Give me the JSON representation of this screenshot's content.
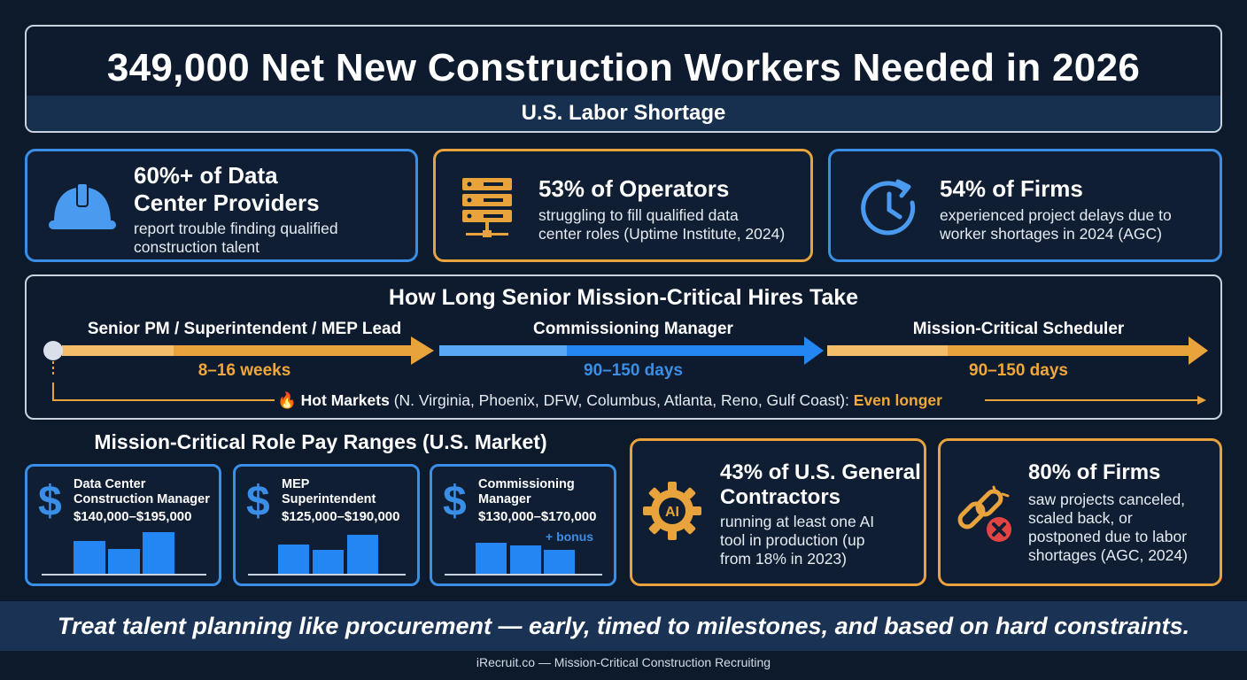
{
  "header": {
    "title": "349,000 Net New Construction Workers Needed in 2026",
    "subtitle": "U.S. Labor Shortage"
  },
  "stats_top": [
    {
      "headline_line1": "60%+ of Data",
      "headline_line2": "Center Providers",
      "detail_line1": "report trouble finding qualified",
      "detail_line2": "construction talent",
      "icon": "hard-hat-icon"
    },
    {
      "headline": "53% of Operators",
      "detail_line1": "struggling to fill qualified data",
      "detail_line2": "center roles (Uptime Institute, 2024)",
      "icon": "server-rack-icon"
    },
    {
      "headline": "54% of Firms",
      "detail_line1": "experienced project delays due to",
      "detail_line2": "worker shortages in 2024 (AGC)",
      "icon": "clock-icon"
    }
  ],
  "timeline": {
    "title": "How Long Senior Mission-Critical Hires Take",
    "stages": [
      {
        "label": "Senior PM / Superintendent / MEP Lead",
        "duration": "8–16 weeks"
      },
      {
        "label": "Commissioning Manager",
        "duration": "90–150 days"
      },
      {
        "label": "Mission-Critical Scheduler",
        "duration": "90–150 days"
      }
    ],
    "hot_markets": {
      "emoji": "🔥",
      "label": "Hot Markets",
      "list": " (N. Virginia, Phoenix, DFW, Columbus, Atlanta, Reno, Gulf Coast): ",
      "emphasis": "Even longer"
    }
  },
  "pay": {
    "title": "Mission-Critical Role Pay Ranges (U.S. Market)",
    "cards": [
      {
        "role_line1": "Data Center",
        "role_line2": "Construction Manager",
        "range": "$140,000–$195,000",
        "bonus": ""
      },
      {
        "role_line1": "MEP",
        "role_line2": "Superintendent",
        "range": "$125,000–$190,000",
        "bonus": ""
      },
      {
        "role_line1": "Commissioning",
        "role_line2": "Manager",
        "range": "$130,000–$170,000",
        "bonus": "+ bonus"
      }
    ]
  },
  "stats_bottom": [
    {
      "headline_line1": "43% of U.S. General",
      "headline_line2": "Contractors",
      "detail_line1": "running at least one AI",
      "detail_line2": "tool in production (up",
      "detail_line3": "from 18% in 2023)",
      "icon": "ai-gear-icon",
      "icon_text": "AI"
    },
    {
      "headline": "80% of Firms",
      "detail_line1": "saw projects canceled,",
      "detail_line2": "scaled back, or",
      "detail_line3": "postponed due to labor",
      "detail_line4": "shortages (AGC, 2024)",
      "icon": "broken-link-icon"
    }
  ],
  "banner": "Treat talent planning like procurement — early, timed to milestones, and based on hard constraints.",
  "footer": "iRecruit.co — Mission-Critical Construction Recruiting",
  "colors": {
    "accent_blue": "#3a8ee6",
    "accent_orange": "#e8a33c",
    "background": "#0d1a2c"
  }
}
